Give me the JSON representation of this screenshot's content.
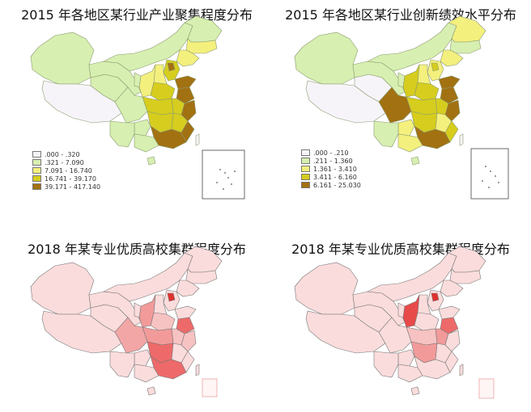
{
  "panels": [
    {
      "title": "2015 年各地区某行业产业聚集程度分布",
      "legend": [
        {
          "label": ".000 - .320",
          "color": "#f7f4f9"
        },
        {
          "label": ".321 - 7.090",
          "color": "#d7efb0"
        },
        {
          "label": "7.091 - 16.740",
          "color": "#f4f07e"
        },
        {
          "label": "16.741 - 39.170",
          "color": "#d6cd1e"
        },
        {
          "label": "39.171 - 417.140",
          "color": "#a27112"
        }
      ]
    },
    {
      "title": "2015 年各地区某行业创新绩效水平分布",
      "legend": [
        {
          "label": ".000 - .210",
          "color": "#f7f4f9"
        },
        {
          "label": ".211 - 1.360",
          "color": "#d7efb0"
        },
        {
          "label": "1.361 - 3.410",
          "color": "#f4f07e"
        },
        {
          "label": "3.411 - 6.160",
          "color": "#d6cd1e"
        },
        {
          "label": "6.161 - 25.030",
          "color": "#a27112"
        }
      ]
    },
    {
      "title": "2018 年某专业优质高校集群程度分布",
      "legend": []
    },
    {
      "title": "2018 年某专业优质高校集群程度分布",
      "legend": []
    }
  ]
}
